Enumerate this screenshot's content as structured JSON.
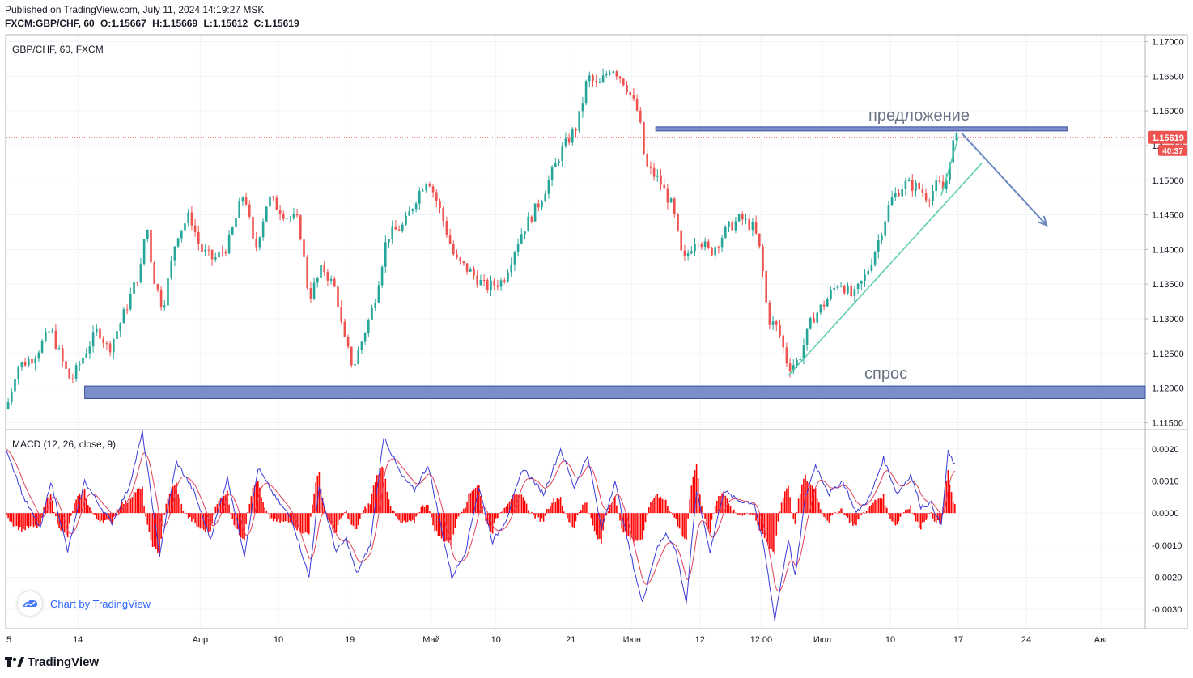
{
  "header": {
    "published": "Published on TradingView.com, July 11, 2024 14:19:27 MSK",
    "symbol_line": "FXCM:GBP/CHF, 60",
    "ohlc": {
      "o_label": "O:",
      "o": "1.15667",
      "h_label": "H:",
      "h": "1.15669",
      "l_label": "L:",
      "l": "1.15612",
      "c_label": "C:",
      "c": "1.15619"
    }
  },
  "colors": {
    "up": "#26a69a",
    "down": "#ef5350",
    "zone": "#7b8ec8",
    "zone_border": "#3a4fa0",
    "trend": "#5fcfb0",
    "arrow": "#6b87c0",
    "macd_line": "#3a3ad8",
    "signal_line": "#e0405a",
    "hist": "#ff0000",
    "price_label": "#ef5350"
  },
  "chart_data": [
    {
      "type": "candlestick",
      "title": "GBP/CHF, 60, FXCM",
      "ylim": [
        1.114,
        1.171
      ],
      "y_ticks": [
        "1.17000",
        "1.16500",
        "1.16000",
        "1.15500",
        "1.15000",
        "1.14500",
        "1.14000",
        "1.13500",
        "1.13000",
        "1.12500",
        "1.12000",
        "1.11500"
      ],
      "x_ticks": [
        "5",
        "14",
        "Апр",
        "10",
        "19",
        "Май",
        "10",
        "21",
        "Июн",
        "12",
        "12:00",
        "Июл",
        "10",
        "17",
        "24",
        "Авг"
      ],
      "path_points": [
        {
          "t": 0,
          "v": 1.117
        },
        {
          "t": 3,
          "v": 1.123
        },
        {
          "t": 8,
          "v": 1.1245
        },
        {
          "t": 13,
          "v": 1.1285
        },
        {
          "t": 17,
          "v": 1.123
        },
        {
          "t": 19,
          "v": 1.121
        },
        {
          "t": 24,
          "v": 1.126
        },
        {
          "t": 27,
          "v": 1.1285
        },
        {
          "t": 30,
          "v": 1.1255
        },
        {
          "t": 34,
          "v": 1.13
        },
        {
          "t": 40,
          "v": 1.138
        },
        {
          "t": 41,
          "v": 1.145
        },
        {
          "t": 43,
          "v": 1.1365
        },
        {
          "t": 46,
          "v": 1.1315
        },
        {
          "t": 50,
          "v": 1.142
        },
        {
          "t": 54,
          "v": 1.145
        },
        {
          "t": 57,
          "v": 1.14
        },
        {
          "t": 61,
          "v": 1.1385
        },
        {
          "t": 65,
          "v": 1.1405
        },
        {
          "t": 70,
          "v": 1.1485
        },
        {
          "t": 73,
          "v": 1.1395
        },
        {
          "t": 77,
          "v": 1.1475
        },
        {
          "t": 82,
          "v": 1.145
        },
        {
          "t": 86,
          "v": 1.144
        },
        {
          "t": 89,
          "v": 1.133
        },
        {
          "t": 93,
          "v": 1.1375
        },
        {
          "t": 97,
          "v": 1.134
        },
        {
          "t": 99,
          "v": 1.1275
        },
        {
          "t": 102,
          "v": 1.123
        },
        {
          "t": 104,
          "v": 1.126
        },
        {
          "t": 108,
          "v": 1.132
        },
        {
          "t": 112,
          "v": 1.142
        },
        {
          "t": 117,
          "v": 1.1435
        },
        {
          "t": 121,
          "v": 1.148
        },
        {
          "t": 124,
          "v": 1.1505
        },
        {
          "t": 128,
          "v": 1.145
        },
        {
          "t": 132,
          "v": 1.1385
        },
        {
          "t": 136,
          "v": 1.137
        },
        {
          "t": 141,
          "v": 1.1345
        },
        {
          "t": 146,
          "v": 1.1355
        },
        {
          "t": 151,
          "v": 1.142
        },
        {
          "t": 157,
          "v": 1.147
        },
        {
          "t": 163,
          "v": 1.154
        },
        {
          "t": 168,
          "v": 1.158
        },
        {
          "t": 171,
          "v": 1.165
        },
        {
          "t": 174,
          "v": 1.1635
        },
        {
          "t": 178,
          "v": 1.1665
        },
        {
          "t": 182,
          "v": 1.164
        },
        {
          "t": 186,
          "v": 1.1595
        },
        {
          "t": 188,
          "v": 1.152
        },
        {
          "t": 192,
          "v": 1.15
        },
        {
          "t": 196,
          "v": 1.146
        },
        {
          "t": 199,
          "v": 1.138
        },
        {
          "t": 203,
          "v": 1.142
        },
        {
          "t": 207,
          "v": 1.1395
        },
        {
          "t": 212,
          "v": 1.143
        },
        {
          "t": 216,
          "v": 1.1445
        },
        {
          "t": 220,
          "v": 1.143
        },
        {
          "t": 222,
          "v": 1.139
        },
        {
          "t": 224,
          "v": 1.13
        },
        {
          "t": 227,
          "v": 1.1285
        },
        {
          "t": 230,
          "v": 1.123
        },
        {
          "t": 233,
          "v": 1.124
        },
        {
          "t": 237,
          "v": 1.13
        },
        {
          "t": 241,
          "v": 1.1325
        },
        {
          "t": 245,
          "v": 1.1355
        },
        {
          "t": 249,
          "v": 1.133
        },
        {
          "t": 253,
          "v": 1.1365
        },
        {
          "t": 257,
          "v": 1.142
        },
        {
          "t": 260,
          "v": 1.147
        },
        {
          "t": 264,
          "v": 1.1495
        },
        {
          "t": 268,
          "v": 1.149
        },
        {
          "t": 271,
          "v": 1.1475
        },
        {
          "t": 274,
          "v": 1.1495
        },
        {
          "t": 276,
          "v": 1.1485
        },
        {
          "t": 278,
          "v": 1.155
        },
        {
          "t": 280,
          "v": 1.15619
        }
      ],
      "last_price": "1.15619",
      "countdown": "40:37",
      "annotations": {
        "supply_label": "предложение",
        "demand_label": "спрос",
        "supply_zone": [
          1.1572,
          1.1577
        ],
        "demand_zone": [
          1.1185,
          1.1203
        ],
        "trendline": [
          {
            "t": 230,
            "v": 1.1218
          },
          {
            "t": 287,
            "v": 1.1525
          }
        ],
        "arrow": [
          {
            "t": 281,
            "v": 1.1568
          },
          {
            "t": 306,
            "v": 1.1435
          }
        ]
      }
    },
    {
      "type": "histogram+line",
      "title": "MACD (12, 26, close, 9)",
      "ylim": [
        -0.0036,
        0.0026
      ],
      "y_ticks": [
        "0.0020",
        "0.0010",
        "0.0000",
        "-0.0010",
        "-0.0020",
        "-0.0030"
      ],
      "macd_points": [
        {
          "t": 0,
          "v": 0.002
        },
        {
          "t": 5,
          "v": 0.0005
        },
        {
          "t": 10,
          "v": -0.0005
        },
        {
          "t": 13,
          "v": 0.001
        },
        {
          "t": 18,
          "v": -0.0012
        },
        {
          "t": 23,
          "v": 0.001
        },
        {
          "t": 27,
          "v": 0.0003
        },
        {
          "t": 31,
          "v": -0.0003
        },
        {
          "t": 36,
          "v": 0.0008
        },
        {
          "t": 40,
          "v": 0.0025
        },
        {
          "t": 45,
          "v": -0.0013
        },
        {
          "t": 50,
          "v": 0.0016
        },
        {
          "t": 55,
          "v": 0.0007
        },
        {
          "t": 60,
          "v": -0.0008
        },
        {
          "t": 65,
          "v": 0.0011
        },
        {
          "t": 70,
          "v": -0.0013
        },
        {
          "t": 74,
          "v": 0.0014
        },
        {
          "t": 79,
          "v": 0.0005
        },
        {
          "t": 84,
          "v": -0.0002
        },
        {
          "t": 89,
          "v": -0.002
        },
        {
          "t": 92,
          "v": 0.0008
        },
        {
          "t": 97,
          "v": -0.0012
        },
        {
          "t": 100,
          "v": -0.0008
        },
        {
          "t": 103,
          "v": -0.0019
        },
        {
          "t": 107,
          "v": -0.001
        },
        {
          "t": 111,
          "v": 0.0024
        },
        {
          "t": 116,
          "v": 0.0012
        },
        {
          "t": 120,
          "v": 0.0007
        },
        {
          "t": 124,
          "v": 0.0015
        },
        {
          "t": 127,
          "v": 0.0
        },
        {
          "t": 131,
          "v": -0.002
        },
        {
          "t": 135,
          "v": -0.0012
        },
        {
          "t": 139,
          "v": 0.0008
        },
        {
          "t": 143,
          "v": -0.0009
        },
        {
          "t": 147,
          "v": -0.0002
        },
        {
          "t": 152,
          "v": 0.0014
        },
        {
          "t": 158,
          "v": 0.0006
        },
        {
          "t": 163,
          "v": 0.002
        },
        {
          "t": 167,
          "v": 0.0008
        },
        {
          "t": 171,
          "v": 0.0018
        },
        {
          "t": 175,
          "v": -0.0005
        },
        {
          "t": 179,
          "v": 0.001
        },
        {
          "t": 183,
          "v": -0.001
        },
        {
          "t": 187,
          "v": -0.0028
        },
        {
          "t": 191,
          "v": -0.0012
        },
        {
          "t": 194,
          "v": -0.0006
        },
        {
          "t": 197,
          "v": -0.0012
        },
        {
          "t": 200,
          "v": -0.0028
        },
        {
          "t": 203,
          "v": 0.0007
        },
        {
          "t": 207,
          "v": -0.0012
        },
        {
          "t": 211,
          "v": 0.0007
        },
        {
          "t": 215,
          "v": 0.0004
        },
        {
          "t": 220,
          "v": 0.0003
        },
        {
          "t": 223,
          "v": -0.0012
        },
        {
          "t": 226,
          "v": -0.0033
        },
        {
          "t": 230,
          "v": -0.0008
        },
        {
          "t": 232,
          "v": -0.002
        },
        {
          "t": 235,
          "v": 0.0005
        },
        {
          "t": 238,
          "v": 0.0015
        },
        {
          "t": 242,
          "v": 0.0006
        },
        {
          "t": 246,
          "v": 0.001
        },
        {
          "t": 250,
          "v": 0.0
        },
        {
          "t": 254,
          "v": 0.0005
        },
        {
          "t": 258,
          "v": 0.0017
        },
        {
          "t": 262,
          "v": 0.0006
        },
        {
          "t": 266,
          "v": 0.0012
        },
        {
          "t": 269,
          "v": 0.0002
        },
        {
          "t": 272,
          "v": 0.0003
        },
        {
          "t": 275,
          "v": -0.0004
        },
        {
          "t": 277,
          "v": 0.0019
        },
        {
          "t": 279,
          "v": 0.0015
        }
      ]
    }
  ],
  "branding": {
    "badge_label": "Chart by TradingView",
    "footer_label": "TradingView"
  }
}
